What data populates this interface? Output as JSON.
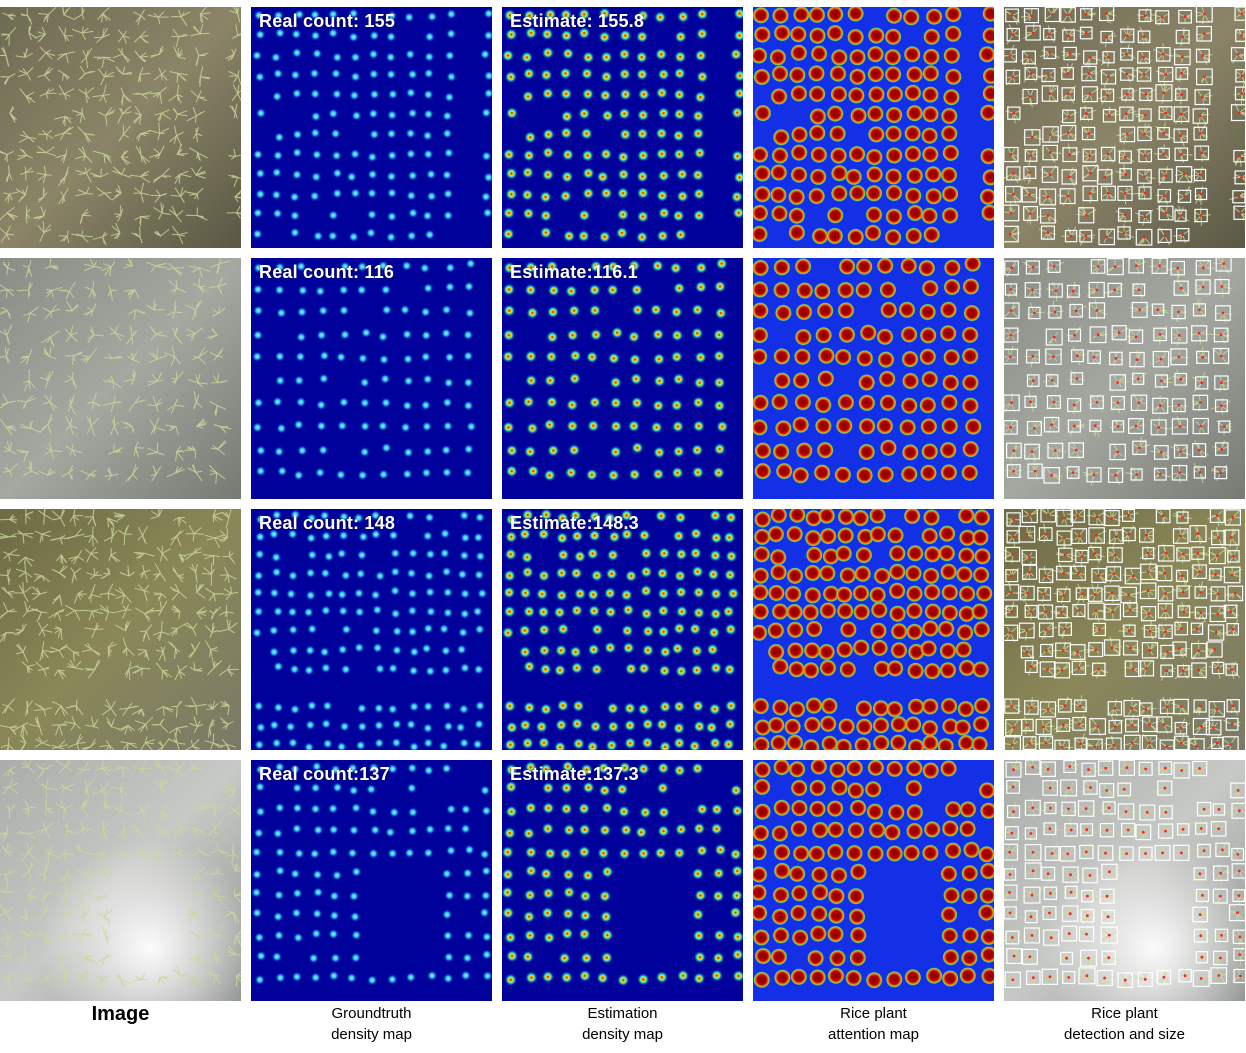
{
  "figure": {
    "columns": [
      {
        "key": "image",
        "caption_lines": [
          "Image"
        ]
      },
      {
        "key": "groundtruth",
        "caption_lines": [
          "Groundtruth",
          "density map"
        ]
      },
      {
        "key": "estimation",
        "caption_lines": [
          "Estimation",
          "density map"
        ]
      },
      {
        "key": "attention",
        "caption_lines": [
          "Rice plant",
          "attention map"
        ]
      },
      {
        "key": "detection",
        "caption_lines": [
          "Rice plant",
          "detection and size"
        ]
      }
    ],
    "rows": [
      {
        "real_count_label": "Real count: 155",
        "estimate_label": "Estimate: 155.8",
        "photo_tone": "muddy"
      },
      {
        "real_count_label": "Real count: 116",
        "estimate_label": "Estimate:116.1",
        "photo_tone": "gray-water"
      },
      {
        "real_count_label": "Real count: 148",
        "estimate_label": "Estimate:148.3",
        "photo_tone": "olive"
      },
      {
        "real_count_label": "Real count:137",
        "estimate_label": "Estimate:137.3",
        "photo_tone": "bright-glare"
      }
    ],
    "colors": {
      "density_bg": "#00009a",
      "attention_bg": "#1430e6",
      "attention_dot_core": "#8a0000",
      "box_stroke": "#ffffff",
      "box_center": "#ff2020"
    }
  }
}
